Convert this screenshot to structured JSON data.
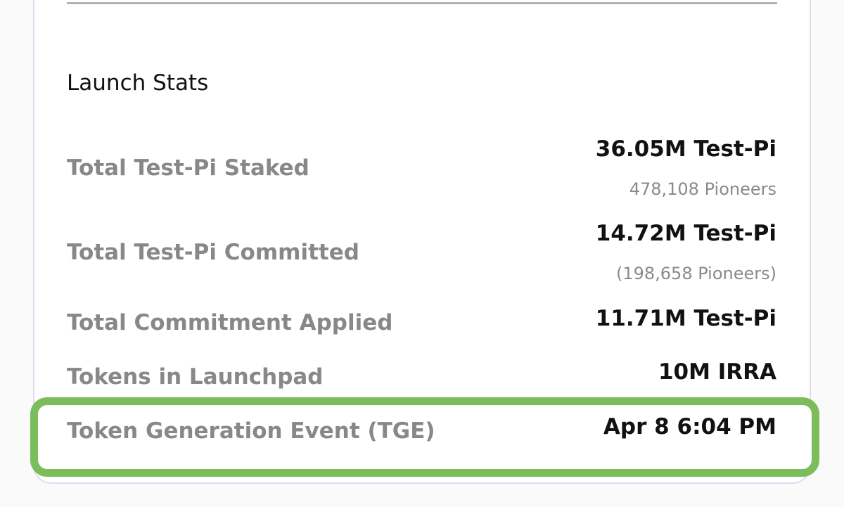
{
  "launch_stats": {
    "title": "Launch Stats",
    "rows": [
      {
        "label": "Total Test-Pi Staked",
        "value": "36.05M Test-Pi",
        "sub": "478,108 Pioneers"
      },
      {
        "label": "Total Test-Pi Committed",
        "value": "14.72M Test-Pi",
        "sub": "(198,658 Pioneers)"
      },
      {
        "label": "Total Commitment Applied",
        "value": "11.71M Test-Pi"
      },
      {
        "label": "Tokens in Launchpad",
        "value": "10M IRRA"
      },
      {
        "label": "Token Generation Event (TGE)",
        "value": "Apr 8 6:04 PM"
      }
    ]
  },
  "colors": {
    "highlight_border": "#7cbd5b",
    "card_border": "#e6d8ee",
    "label_gray": "#8a878b",
    "value_dark": "#111111"
  }
}
